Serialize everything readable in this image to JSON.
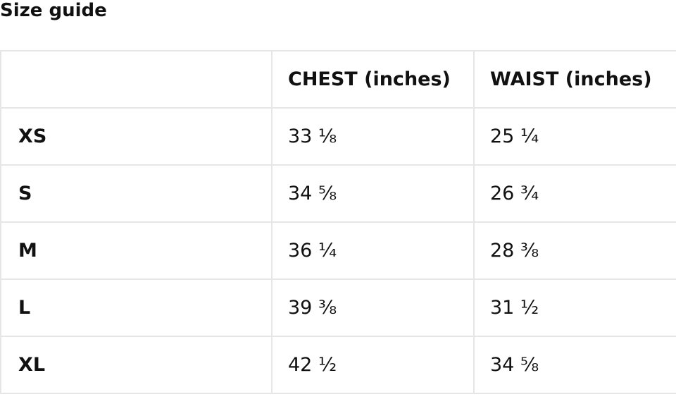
{
  "title": "Size guide",
  "table": {
    "headers": [
      "",
      "CHEST (inches)",
      "WAIST (inches)"
    ],
    "rows": [
      {
        "size": "XS",
        "chest": "33 ⅛",
        "waist": "25 ¼"
      },
      {
        "size": "S",
        "chest": "34 ⅝",
        "waist": "26 ¾"
      },
      {
        "size": "M",
        "chest": "36 ¼",
        "waist": "28 ⅜"
      },
      {
        "size": "L",
        "chest": "39 ⅜",
        "waist": "31 ½"
      },
      {
        "size": "XL",
        "chest": "42 ½",
        "waist": "34 ⅝"
      }
    ]
  }
}
